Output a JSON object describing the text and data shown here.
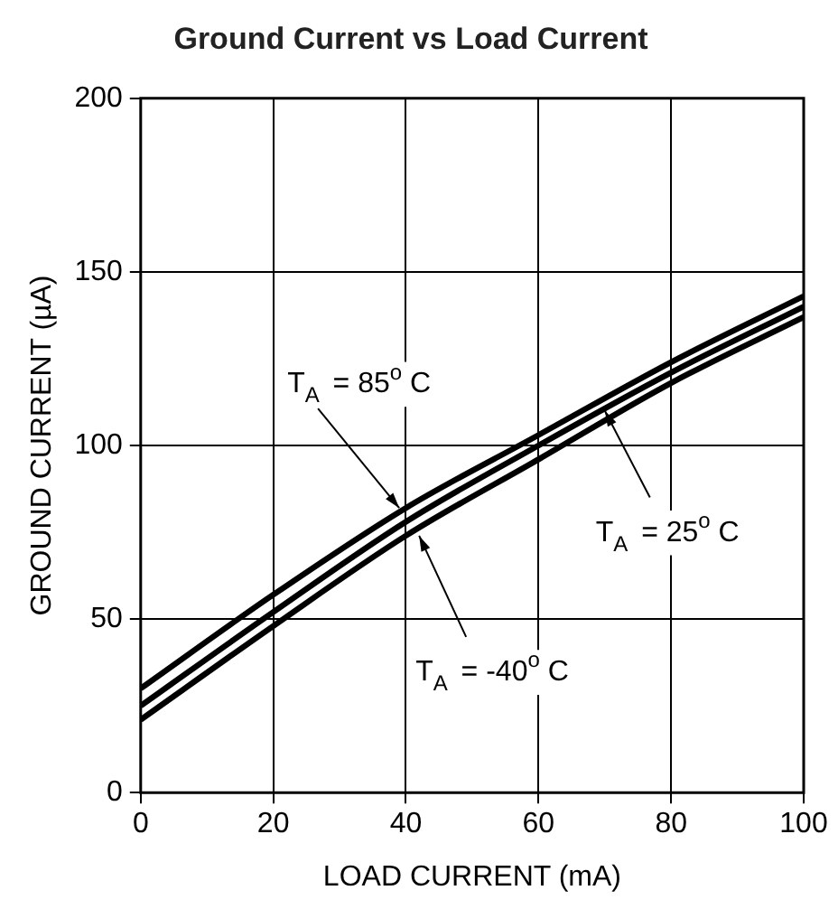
{
  "chart_data": {
    "type": "line",
    "title": "Ground Current vs Load Current",
    "xlabel": "LOAD CURRENT (mA)",
    "ylabel": "GROUND CURRENT (µA)",
    "x": [
      0,
      20,
      40,
      60,
      80,
      100
    ],
    "series": [
      {
        "color": "#000000",
        "values": [
          30,
          57,
          82,
          103,
          124,
          143
        ]
      },
      {
        "color": "#000000",
        "values": [
          25,
          52,
          78,
          100,
          121,
          140
        ]
      },
      {
        "color": "#000000",
        "values": [
          21,
          48,
          74,
          96,
          118,
          137
        ]
      }
    ],
    "xlim": [
      0,
      100
    ],
    "xticks": [
      0,
      20,
      40,
      60,
      80,
      100
    ],
    "ylim": [
      0,
      200
    ],
    "yticks": [
      0,
      50,
      100,
      150,
      200
    ],
    "grid": true,
    "legend": false,
    "marker": "none",
    "line_style": "solid",
    "annotations": [
      {
        "text": "T$_{A}$ = 85$^{o}$ C",
        "x": 39,
        "y": 82
      },
      {
        "text": "T$_{A}$ = 25$^{o}$ C",
        "x": 70,
        "y": 110
      },
      {
        "text": "T$_{A}$ = -40$^{o}$ C",
        "x": 42,
        "y": 74
      }
    ]
  }
}
